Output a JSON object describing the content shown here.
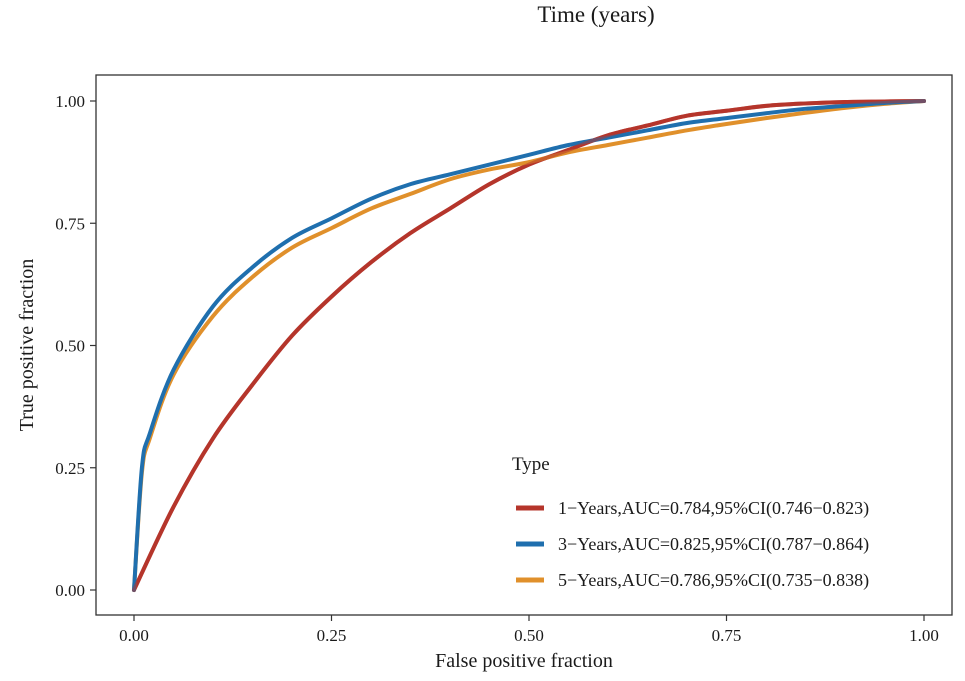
{
  "chart_data": {
    "type": "line",
    "title": "Time (years)",
    "xlabel": "False positive fraction",
    "ylabel": "True positive fraction",
    "xlim": [
      0,
      1
    ],
    "ylim": [
      0,
      1
    ],
    "x_ticks": [
      0,
      0.25,
      0.5,
      0.75,
      1
    ],
    "x_tick_labels": [
      "0.00",
      "0.25",
      "0.50",
      "0.75",
      "1.00"
    ],
    "y_ticks": [
      0,
      0.25,
      0.5,
      0.75,
      1
    ],
    "y_tick_labels": [
      "0.00",
      "0.25",
      "0.50",
      "0.75",
      "1.00"
    ],
    "grid": false,
    "legend": {
      "title": "Type",
      "position": "bottom-right"
    },
    "series": [
      {
        "name": "1−Years,AUC=0.784,95%CI(0.746−0.823)",
        "color": "#b5352b",
        "x": [
          0,
          0.05,
          0.1,
          0.15,
          0.2,
          0.25,
          0.3,
          0.35,
          0.4,
          0.45,
          0.5,
          0.55,
          0.6,
          0.65,
          0.7,
          0.75,
          0.8,
          0.85,
          0.9,
          0.95,
          1.0
        ],
        "y": [
          0,
          0.17,
          0.31,
          0.42,
          0.52,
          0.6,
          0.67,
          0.73,
          0.78,
          0.83,
          0.87,
          0.9,
          0.93,
          0.95,
          0.97,
          0.98,
          0.99,
          0.995,
          0.998,
          0.999,
          1.0
        ]
      },
      {
        "name": "3−Years,AUC=0.825,95%CI(0.787−0.864)",
        "color": "#1f6fae",
        "x": [
          0,
          0.01,
          0.02,
          0.05,
          0.1,
          0.15,
          0.2,
          0.25,
          0.3,
          0.35,
          0.4,
          0.45,
          0.5,
          0.55,
          0.6,
          0.65,
          0.7,
          0.75,
          0.8,
          0.85,
          0.9,
          0.95,
          1.0
        ],
        "y": [
          0,
          0.25,
          0.32,
          0.45,
          0.58,
          0.66,
          0.72,
          0.76,
          0.8,
          0.83,
          0.85,
          0.87,
          0.89,
          0.91,
          0.925,
          0.94,
          0.955,
          0.965,
          0.975,
          0.984,
          0.99,
          0.996,
          1.0
        ]
      },
      {
        "name": "5−Years,AUC=0.786,95%CI(0.735−0.838)",
        "color": "#e0902b",
        "x": [
          0,
          0.01,
          0.02,
          0.05,
          0.1,
          0.15,
          0.2,
          0.25,
          0.3,
          0.35,
          0.4,
          0.45,
          0.5,
          0.55,
          0.6,
          0.65,
          0.7,
          0.75,
          0.8,
          0.85,
          0.9,
          0.95,
          1.0
        ],
        "y": [
          0,
          0.24,
          0.31,
          0.44,
          0.56,
          0.64,
          0.7,
          0.74,
          0.78,
          0.81,
          0.84,
          0.86,
          0.875,
          0.895,
          0.91,
          0.925,
          0.94,
          0.953,
          0.965,
          0.976,
          0.986,
          0.994,
          1.0
        ]
      }
    ]
  }
}
